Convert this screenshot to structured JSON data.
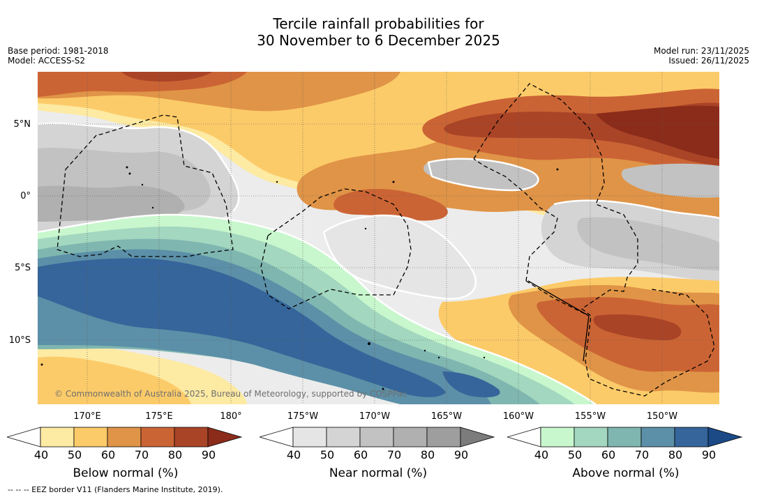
{
  "title_line1": "Tercile rainfall probabilities for",
  "title_line2": "30 November to 6 December 2025",
  "base_period": "Base period: 1981-2018",
  "model": "Model: ACCESS-S2",
  "model_run": "Model run: 23/11/2025",
  "issued": "Issued: 26/11/2025",
  "lat_labels": [
    "5°N",
    "0°",
    "5°S",
    "10°S"
  ],
  "lon_labels": [
    "170°E",
    "175°E",
    "180°",
    "175°W",
    "170°W",
    "165°W",
    "160°W",
    "155°W",
    "150°W"
  ],
  "copyright": "© Commonwealth of Australia 2025, Bureau of Meteorology, supported by COSPPac",
  "colorbars": [
    {
      "title": "Below normal (%)",
      "ticks": [
        "40",
        "50",
        "60",
        "70",
        "80",
        "90"
      ],
      "colors": [
        "#ffffff",
        "#fdeaa3",
        "#fccb69",
        "#e09447",
        "#cb6434",
        "#aa4427",
        "#8b2c1a"
      ]
    },
    {
      "title": "Near normal (%)",
      "ticks": [
        "40",
        "50",
        "60",
        "70",
        "80",
        "90"
      ],
      "colors": [
        "#ffffff",
        "#e5e5e5",
        "#d4d4d4",
        "#c2c2c2",
        "#b0b0b0",
        "#9e9e9e",
        "#7c7c7c"
      ]
    },
    {
      "title": "Above normal (%)",
      "ticks": [
        "40",
        "50",
        "60",
        "70",
        "80",
        "90"
      ],
      "colors": [
        "#ffffff",
        "#c8f7cd",
        "#a3d7bf",
        "#7fb6b0",
        "#5c90a8",
        "#35659a",
        "#1c4a87"
      ]
    }
  ],
  "footer": "--  --  -- EEZ border V11 (Flanders Marine Institute, 2019)."
}
